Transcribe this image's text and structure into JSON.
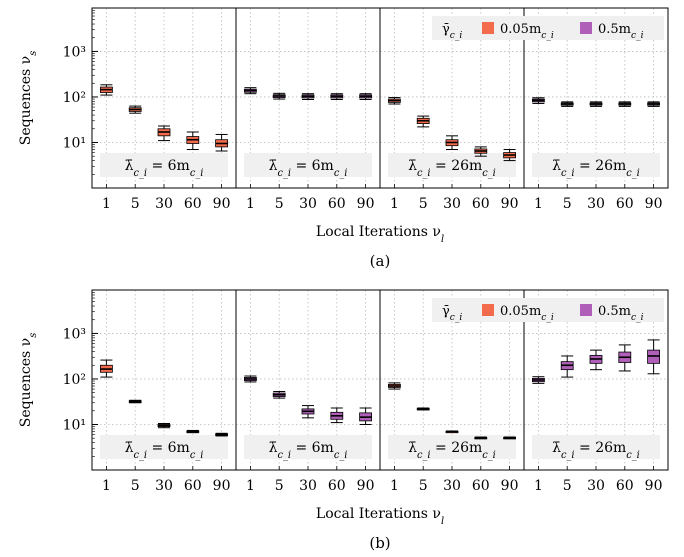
{
  "chart_data": [
    {
      "type": "box",
      "caption": "(a)",
      "xlabel": "Local Iterations ν_l",
      "ylabel": "Sequences ν_s",
      "yscale": "log",
      "ylim": [
        1,
        9000
      ],
      "yticks": [
        {
          "value": 10,
          "label": "10¹"
        },
        {
          "value": 100,
          "label": "10²"
        },
        {
          "value": 1000,
          "label": "10³"
        }
      ],
      "categories": [
        "1",
        "5",
        "30",
        "60",
        "90"
      ],
      "grid": true,
      "legend": {
        "position": "top-right",
        "title": "γ̄_{c_i}",
        "entries": [
          {
            "label": "0.05m_{c_i}",
            "color": "#f26b4d"
          },
          {
            "label": "0.5m_{c_i}",
            "color": "#b05fb8"
          }
        ]
      },
      "panels": [
        {
          "label": "λ̄_{c_i} = 6m_{c_i}",
          "color": "#f26b4d",
          "boxes": [
            {
              "category": "1",
              "whisker_low": 110,
              "q1": 125,
              "median": 145,
              "q3": 165,
              "whisker_high": 185
            },
            {
              "category": "5",
              "whisker_low": 44,
              "q1": 48,
              "median": 53,
              "q3": 58,
              "whisker_high": 63
            },
            {
              "category": "30",
              "whisker_low": 11,
              "q1": 14,
              "median": 17,
              "q3": 20,
              "whisker_high": 23
            },
            {
              "category": "60",
              "whisker_low": 7,
              "q1": 9.5,
              "median": 11.5,
              "q3": 13.5,
              "whisker_high": 17
            },
            {
              "category": "90",
              "whisker_low": 6.5,
              "q1": 8,
              "median": 9.5,
              "q3": 11.5,
              "whisker_high": 15
            }
          ]
        },
        {
          "label": "λ̄_{c_i} = 6m_{c_i}",
          "color": "#b05fb8",
          "boxes": [
            {
              "category": "1",
              "whisker_low": 118,
              "q1": 127,
              "median": 138,
              "q3": 148,
              "whisker_high": 160
            },
            {
              "category": "5",
              "whisker_low": 90,
              "q1": 97,
              "median": 105,
              "q3": 112,
              "whisker_high": 120
            },
            {
              "category": "30",
              "whisker_low": 88,
              "q1": 95,
              "median": 103,
              "q3": 111,
              "whisker_high": 118
            },
            {
              "category": "60",
              "whisker_low": 88,
              "q1": 95,
              "median": 103,
              "q3": 111,
              "whisker_high": 118
            },
            {
              "category": "90",
              "whisker_low": 88,
              "q1": 95,
              "median": 103,
              "q3": 111,
              "whisker_high": 118
            }
          ]
        },
        {
          "label": "λ̄_{c_i} = 26m_{c_i}",
          "color": "#f26b4d",
          "boxes": [
            {
              "category": "1",
              "whisker_low": 70,
              "q1": 76,
              "median": 83,
              "q3": 90,
              "whisker_high": 97
            },
            {
              "category": "5",
              "whisker_low": 22,
              "q1": 26,
              "median": 30,
              "q3": 34,
              "whisker_high": 38
            },
            {
              "category": "30",
              "whisker_low": 7,
              "q1": 8.5,
              "median": 10,
              "q3": 11.5,
              "whisker_high": 14
            },
            {
              "category": "60",
              "whisker_low": 5,
              "q1": 5.8,
              "median": 6.5,
              "q3": 7.2,
              "whisker_high": 8
            },
            {
              "category": "90",
              "whisker_low": 4,
              "q1": 4.6,
              "median": 5.3,
              "q3": 6,
              "whisker_high": 7
            }
          ]
        },
        {
          "label": "λ̄_{c_i} = 26m_{c_i}",
          "color": "#b05fb8",
          "boxes": [
            {
              "category": "1",
              "whisker_low": 72,
              "q1": 78,
              "median": 84,
              "q3": 90,
              "whisker_high": 96
            },
            {
              "category": "5",
              "whisker_low": 62,
              "q1": 66,
              "median": 70,
              "q3": 74,
              "whisker_high": 78
            },
            {
              "category": "30",
              "whisker_low": 62,
              "q1": 66,
              "median": 70,
              "q3": 74,
              "whisker_high": 78
            },
            {
              "category": "60",
              "whisker_low": 62,
              "q1": 66,
              "median": 70,
              "q3": 74,
              "whisker_high": 78
            },
            {
              "category": "90",
              "whisker_low": 62,
              "q1": 66,
              "median": 70,
              "q3": 74,
              "whisker_high": 78
            }
          ]
        }
      ]
    },
    {
      "type": "box",
      "caption": "(b)",
      "xlabel": "Local Iterations ν_l",
      "ylabel": "Sequences ν_s",
      "yscale": "log",
      "ylim": [
        1,
        9000
      ],
      "yticks": [
        {
          "value": 10,
          "label": "10¹"
        },
        {
          "value": 100,
          "label": "10²"
        },
        {
          "value": 1000,
          "label": "10³"
        }
      ],
      "categories": [
        "1",
        "5",
        "30",
        "60",
        "90"
      ],
      "grid": true,
      "legend": {
        "position": "top-right",
        "title": "γ̄_{c_i}",
        "entries": [
          {
            "label": "0.05m_{c_i}",
            "color": "#f26b4d"
          },
          {
            "label": "0.5m_{c_i}",
            "color": "#b05fb8"
          }
        ]
      },
      "panels": [
        {
          "label": "λ̄_{c_i} = 6m_{c_i}",
          "color": "#f26b4d",
          "boxes": [
            {
              "category": "1",
              "whisker_low": 110,
              "q1": 140,
              "median": 165,
              "q3": 200,
              "whisker_high": 260
            },
            {
              "category": "5",
              "whisker_low": 30,
              "q1": 31,
              "median": 32,
              "q3": 33,
              "whisker_high": 34
            },
            {
              "category": "30",
              "whisker_low": 8.5,
              "q1": 9,
              "median": 9.5,
              "q3": 10,
              "whisker_high": 10.5
            },
            {
              "category": "60",
              "whisker_low": 6.6,
              "q1": 6.8,
              "median": 7,
              "q3": 7.2,
              "whisker_high": 7.4
            },
            {
              "category": "90",
              "whisker_low": 5.6,
              "q1": 5.8,
              "median": 6,
              "q3": 6.2,
              "whisker_high": 6.4
            }
          ]
        },
        {
          "label": "λ̄_{c_i} = 6m_{c_i}",
          "color": "#b05fb8",
          "boxes": [
            {
              "category": "1",
              "whisker_low": 86,
              "q1": 92,
              "median": 100,
              "q3": 108,
              "whisker_high": 116
            },
            {
              "category": "5",
              "whisker_low": 38,
              "q1": 41,
              "median": 45,
              "q3": 49,
              "whisker_high": 53
            },
            {
              "category": "30",
              "whisker_low": 14,
              "q1": 17,
              "median": 19.5,
              "q3": 22,
              "whisker_high": 26
            },
            {
              "category": "60",
              "whisker_low": 11,
              "q1": 13,
              "median": 15.5,
              "q3": 18.5,
              "whisker_high": 23
            },
            {
              "category": "90",
              "whisker_low": 10,
              "q1": 12,
              "median": 14.5,
              "q3": 18,
              "whisker_high": 23
            }
          ]
        },
        {
          "label": "λ̄_{c_i} = 26m_{c_i}",
          "color": "#f26b4d",
          "boxes": [
            {
              "category": "1",
              "whisker_low": 60,
              "q1": 65,
              "median": 70,
              "q3": 76,
              "whisker_high": 82
            },
            {
              "category": "5",
              "whisker_low": 21,
              "q1": 21.5,
              "median": 22,
              "q3": 22.5,
              "whisker_high": 23
            },
            {
              "category": "30",
              "whisker_low": 6.8,
              "q1": 6.9,
              "median": 7,
              "q3": 7.1,
              "whisker_high": 7.2
            },
            {
              "category": "60",
              "whisker_low": 4.9,
              "q1": 5,
              "median": 5.1,
              "q3": 5.2,
              "whisker_high": 5.3
            },
            {
              "category": "90",
              "whisker_low": 4.9,
              "q1": 5,
              "median": 5.1,
              "q3": 5.2,
              "whisker_high": 5.3
            }
          ]
        },
        {
          "label": "λ̄_{c_i} = 26m_{c_i}",
          "color": "#b05fb8",
          "boxes": [
            {
              "category": "1",
              "whisker_low": 80,
              "q1": 87,
              "median": 95,
              "q3": 103,
              "whisker_high": 112
            },
            {
              "category": "5",
              "whisker_low": 110,
              "q1": 160,
              "median": 200,
              "q3": 240,
              "whisker_high": 320
            },
            {
              "category": "30",
              "whisker_low": 160,
              "q1": 220,
              "median": 275,
              "q3": 330,
              "whisker_high": 430
            },
            {
              "category": "60",
              "whisker_low": 150,
              "q1": 230,
              "median": 300,
              "q3": 390,
              "whisker_high": 560
            },
            {
              "category": "90",
              "whisker_low": 130,
              "q1": 220,
              "median": 320,
              "q3": 430,
              "whisker_high": 720
            }
          ]
        }
      ]
    }
  ]
}
